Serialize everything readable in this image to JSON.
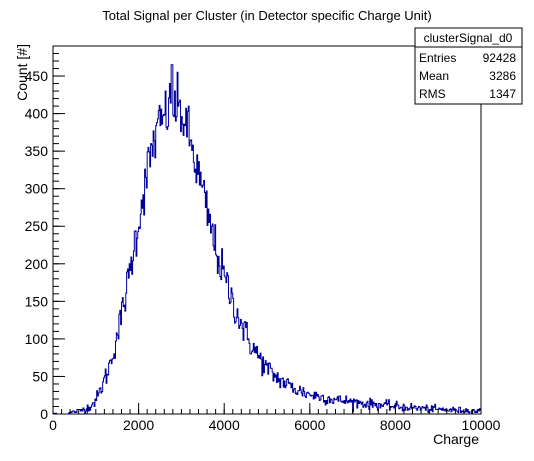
{
  "chart_data": {
    "type": "histogram",
    "title": "Total Signal per Cluster (in Detector specific Charge Unit)",
    "xlabel": "Charge",
    "ylabel": "Count [#]",
    "xlim": [
      0,
      10000
    ],
    "ylim": [
      0,
      490
    ],
    "x_ticks": [
      0,
      2000,
      4000,
      6000,
      8000,
      10000
    ],
    "y_ticks": [
      0,
      50,
      100,
      150,
      200,
      250,
      300,
      350,
      400,
      450
    ],
    "grid": false,
    "line_color": "#000099",
    "bin_width": 20,
    "series": [
      {
        "name": "clusterSignal_d0",
        "x": [
          300,
          400,
          500,
          600,
          700,
          800,
          900,
          1000,
          1100,
          1200,
          1300,
          1400,
          1500,
          1600,
          1700,
          1800,
          1900,
          2000,
          2100,
          2200,
          2300,
          2400,
          2500,
          2600,
          2700,
          2800,
          2900,
          3000,
          3100,
          3200,
          3300,
          3400,
          3500,
          3600,
          3700,
          3800,
          3900,
          4000,
          4200,
          4400,
          4600,
          4800,
          5000,
          5200,
          5400,
          5600,
          5800,
          6000,
          6500,
          7000,
          7500,
          8000,
          8500,
          9000,
          9500,
          10000
        ],
        "y": [
          0,
          2,
          3,
          4,
          6,
          8,
          12,
          18,
          30,
          45,
          60,
          80,
          105,
          130,
          160,
          190,
          225,
          255,
          290,
          320,
          350,
          370,
          385,
          395,
          405,
          410,
          408,
          400,
          385,
          365,
          340,
          318,
          295,
          268,
          245,
          222,
          200,
          182,
          150,
          120,
          95,
          77,
          60,
          50,
          42,
          35,
          30,
          26,
          20,
          16,
          13,
          10,
          8,
          6,
          5,
          4
        ]
      }
    ],
    "peak": {
      "x": 2780,
      "y": 465
    }
  },
  "stats_box": {
    "title": "clusterSignal_d0",
    "rows": [
      {
        "label": "Entries",
        "value": "92428"
      },
      {
        "label": "Mean",
        "value": "3286"
      },
      {
        "label": "RMS",
        "value": "1347"
      }
    ]
  }
}
